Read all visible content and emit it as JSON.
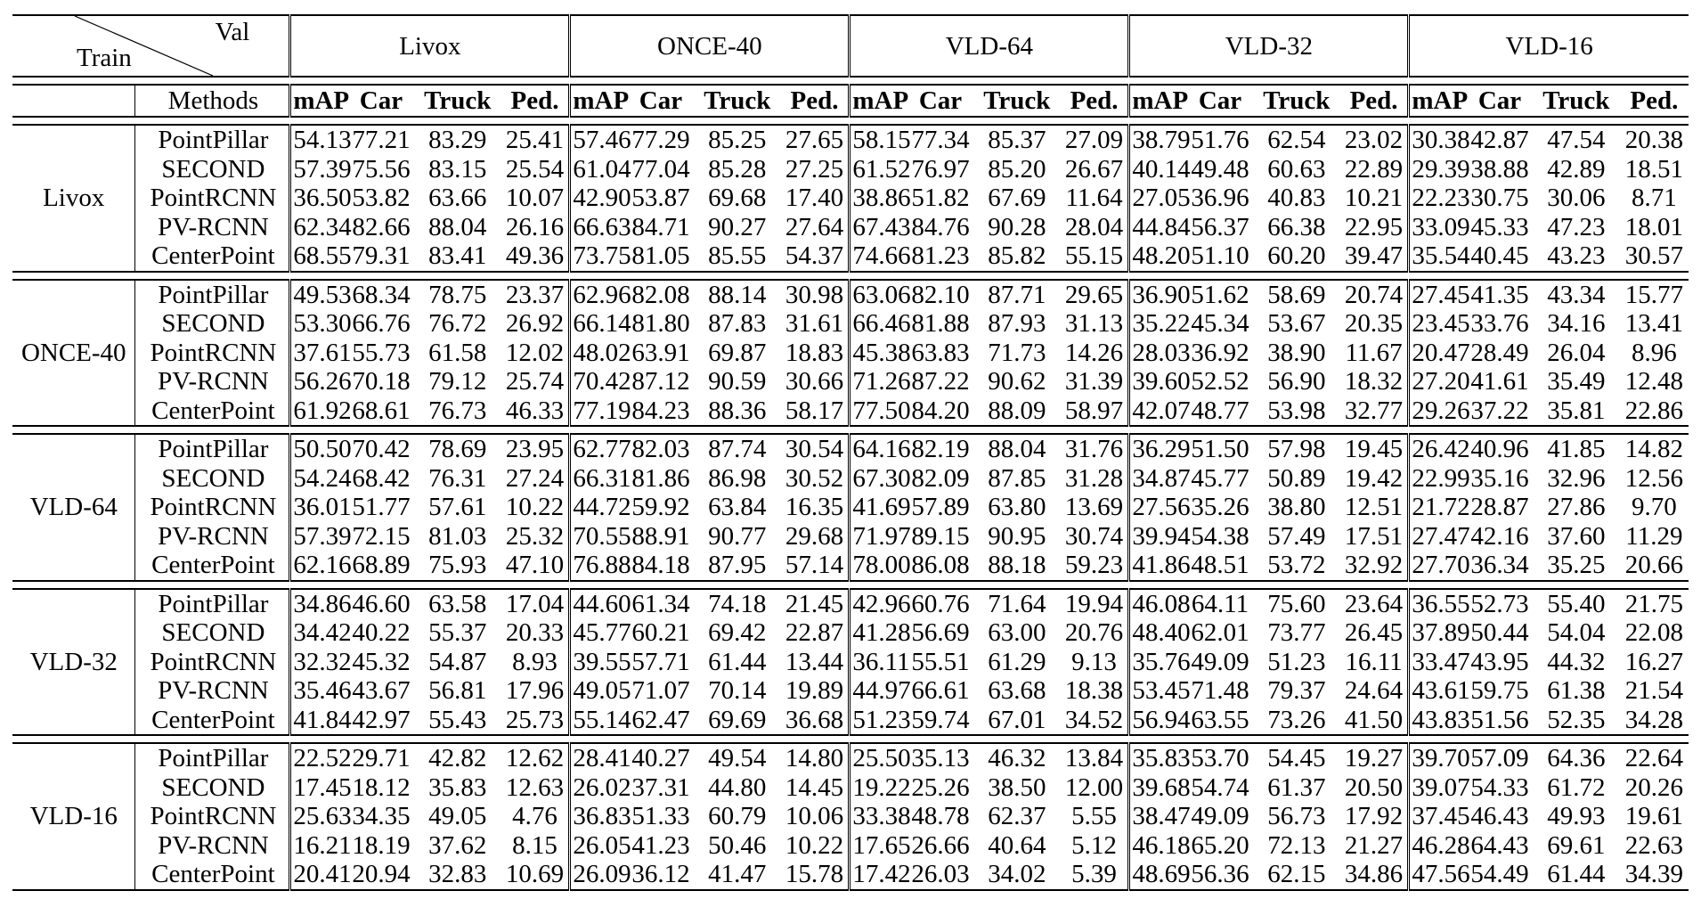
{
  "header": {
    "val_label": "Val",
    "train_label": "Train",
    "methods_label": "Methods",
    "val_groups": [
      "Livox",
      "ONCE-40",
      "VLD-64",
      "VLD-32",
      "VLD-16"
    ],
    "metrics": [
      "mAP",
      "Car",
      "Truck",
      "Ped."
    ]
  },
  "train_groups": [
    {
      "name": "Livox",
      "rows": [
        {
          "method": "PointPillar",
          "values": [
            [
              "54.13",
              "77.21",
              "83.29",
              "25.41"
            ],
            [
              "57.46",
              "77.29",
              "85.25",
              "27.65"
            ],
            [
              "58.15",
              "77.34",
              "85.37",
              "27.09"
            ],
            [
              "38.79",
              "51.76",
              "62.54",
              "23.02"
            ],
            [
              "30.38",
              "42.87",
              "47.54",
              "20.38"
            ]
          ]
        },
        {
          "method": "SECOND",
          "values": [
            [
              "57.39",
              "75.56",
              "83.15",
              "25.54"
            ],
            [
              "61.04",
              "77.04",
              "85.28",
              "27.25"
            ],
            [
              "61.52",
              "76.97",
              "85.20",
              "26.67"
            ],
            [
              "40.14",
              "49.48",
              "60.63",
              "22.89"
            ],
            [
              "29.39",
              "38.88",
              "42.89",
              "18.51"
            ]
          ]
        },
        {
          "method": "PointRCNN",
          "values": [
            [
              "36.50",
              "53.82",
              "63.66",
              "10.07"
            ],
            [
              "42.90",
              "53.87",
              "69.68",
              "17.40"
            ],
            [
              "38.86",
              "51.82",
              "67.69",
              "11.64"
            ],
            [
              "27.05",
              "36.96",
              "40.83",
              "10.21"
            ],
            [
              "22.23",
              "30.75",
              "30.06",
              "8.71"
            ]
          ]
        },
        {
          "method": "PV-RCNN",
          "values": [
            [
              "62.34",
              "82.66",
              "88.04",
              "26.16"
            ],
            [
              "66.63",
              "84.71",
              "90.27",
              "27.64"
            ],
            [
              "67.43",
              "84.76",
              "90.28",
              "28.04"
            ],
            [
              "44.84",
              "56.37",
              "66.38",
              "22.95"
            ],
            [
              "33.09",
              "45.33",
              "47.23",
              "18.01"
            ]
          ]
        },
        {
          "method": "CenterPoint",
          "values": [
            [
              "68.55",
              "79.31",
              "83.41",
              "49.36"
            ],
            [
              "73.75",
              "81.05",
              "85.55",
              "54.37"
            ],
            [
              "74.66",
              "81.23",
              "85.82",
              "55.15"
            ],
            [
              "48.20",
              "51.10",
              "60.20",
              "39.47"
            ],
            [
              "35.54",
              "40.45",
              "43.23",
              "30.57"
            ]
          ]
        }
      ]
    },
    {
      "name": "ONCE-40",
      "rows": [
        {
          "method": "PointPillar",
          "values": [
            [
              "49.53",
              "68.34",
              "78.75",
              "23.37"
            ],
            [
              "62.96",
              "82.08",
              "88.14",
              "30.98"
            ],
            [
              "63.06",
              "82.10",
              "87.71",
              "29.65"
            ],
            [
              "36.90",
              "51.62",
              "58.69",
              "20.74"
            ],
            [
              "27.45",
              "41.35",
              "43.34",
              "15.77"
            ]
          ]
        },
        {
          "method": "SECOND",
          "values": [
            [
              "53.30",
              "66.76",
              "76.72",
              "26.92"
            ],
            [
              "66.14",
              "81.80",
              "87.83",
              "31.61"
            ],
            [
              "66.46",
              "81.88",
              "87.93",
              "31.13"
            ],
            [
              "35.22",
              "45.34",
              "53.67",
              "20.35"
            ],
            [
              "23.45",
              "33.76",
              "34.16",
              "13.41"
            ]
          ]
        },
        {
          "method": "PointRCNN",
          "values": [
            [
              "37.61",
              "55.73",
              "61.58",
              "12.02"
            ],
            [
              "48.02",
              "63.91",
              "69.87",
              "18.83"
            ],
            [
              "45.38",
              "63.83",
              "71.73",
              "14.26"
            ],
            [
              "28.03",
              "36.92",
              "38.90",
              "11.67"
            ],
            [
              "20.47",
              "28.49",
              "26.04",
              "8.96"
            ]
          ]
        },
        {
          "method": "PV-RCNN",
          "values": [
            [
              "56.26",
              "70.18",
              "79.12",
              "25.74"
            ],
            [
              "70.42",
              "87.12",
              "90.59",
              "30.66"
            ],
            [
              "71.26",
              "87.22",
              "90.62",
              "31.39"
            ],
            [
              "39.60",
              "52.52",
              "56.90",
              "18.32"
            ],
            [
              "27.20",
              "41.61",
              "35.49",
              "12.48"
            ]
          ]
        },
        {
          "method": "CenterPoint",
          "values": [
            [
              "61.92",
              "68.61",
              "76.73",
              "46.33"
            ],
            [
              "77.19",
              "84.23",
              "88.36",
              "58.17"
            ],
            [
              "77.50",
              "84.20",
              "88.09",
              "58.97"
            ],
            [
              "42.07",
              "48.77",
              "53.98",
              "32.77"
            ],
            [
              "29.26",
              "37.22",
              "35.81",
              "22.86"
            ]
          ]
        }
      ]
    },
    {
      "name": "VLD-64",
      "rows": [
        {
          "method": "PointPillar",
          "values": [
            [
              "50.50",
              "70.42",
              "78.69",
              "23.95"
            ],
            [
              "62.77",
              "82.03",
              "87.74",
              "30.54"
            ],
            [
              "64.16",
              "82.19",
              "88.04",
              "31.76"
            ],
            [
              "36.29",
              "51.50",
              "57.98",
              "19.45"
            ],
            [
              "26.42",
              "40.96",
              "41.85",
              "14.82"
            ]
          ]
        },
        {
          "method": "SECOND",
          "values": [
            [
              "54.24",
              "68.42",
              "76.31",
              "27.24"
            ],
            [
              "66.31",
              "81.86",
              "86.98",
              "30.52"
            ],
            [
              "67.30",
              "82.09",
              "87.85",
              "31.28"
            ],
            [
              "34.87",
              "45.77",
              "50.89",
              "19.42"
            ],
            [
              "22.99",
              "35.16",
              "32.96",
              "12.56"
            ]
          ]
        },
        {
          "method": "PointRCNN",
          "values": [
            [
              "36.01",
              "51.77",
              "57.61",
              "10.22"
            ],
            [
              "44.72",
              "59.92",
              "63.84",
              "16.35"
            ],
            [
              "41.69",
              "57.89",
              "63.80",
              "13.69"
            ],
            [
              "27.56",
              "35.26",
              "38.80",
              "12.51"
            ],
            [
              "21.72",
              "28.87",
              "27.86",
              "9.70"
            ]
          ]
        },
        {
          "method": "PV-RCNN",
          "values": [
            [
              "57.39",
              "72.15",
              "81.03",
              "25.32"
            ],
            [
              "70.55",
              "88.91",
              "90.77",
              "29.68"
            ],
            [
              "71.97",
              "89.15",
              "90.95",
              "30.74"
            ],
            [
              "39.94",
              "54.38",
              "57.49",
              "17.51"
            ],
            [
              "27.47",
              "42.16",
              "37.60",
              "11.29"
            ]
          ]
        },
        {
          "method": "CenterPoint",
          "values": [
            [
              "62.16",
              "68.89",
              "75.93",
              "47.10"
            ],
            [
              "76.88",
              "84.18",
              "87.95",
              "57.14"
            ],
            [
              "78.00",
              "86.08",
              "88.18",
              "59.23"
            ],
            [
              "41.86",
              "48.51",
              "53.72",
              "32.92"
            ],
            [
              "27.70",
              "36.34",
              "35.25",
              "20.66"
            ]
          ]
        }
      ]
    },
    {
      "name": "VLD-32",
      "rows": [
        {
          "method": "PointPillar",
          "values": [
            [
              "34.86",
              "46.60",
              "63.58",
              "17.04"
            ],
            [
              "44.60",
              "61.34",
              "74.18",
              "21.45"
            ],
            [
              "42.96",
              "60.76",
              "71.64",
              "19.94"
            ],
            [
              "46.08",
              "64.11",
              "75.60",
              "23.64"
            ],
            [
              "36.55",
              "52.73",
              "55.40",
              "21.75"
            ]
          ]
        },
        {
          "method": "SECOND",
          "values": [
            [
              "34.42",
              "40.22",
              "55.37",
              "20.33"
            ],
            [
              "45.77",
              "60.21",
              "69.42",
              "22.87"
            ],
            [
              "41.28",
              "56.69",
              "63.00",
              "20.76"
            ],
            [
              "48.40",
              "62.01",
              "73.77",
              "26.45"
            ],
            [
              "37.89",
              "50.44",
              "54.04",
              "22.08"
            ]
          ]
        },
        {
          "method": "PointRCNN",
          "values": [
            [
              "32.32",
              "45.32",
              "54.87",
              "8.93"
            ],
            [
              "39.55",
              "57.71",
              "61.44",
              "13.44"
            ],
            [
              "36.11",
              "55.51",
              "61.29",
              "9.13"
            ],
            [
              "35.76",
              "49.09",
              "51.23",
              "16.11"
            ],
            [
              "33.47",
              "43.95",
              "44.32",
              "16.27"
            ]
          ]
        },
        {
          "method": "PV-RCNN",
          "values": [
            [
              "35.46",
              "43.67",
              "56.81",
              "17.96"
            ],
            [
              "49.05",
              "71.07",
              "70.14",
              "19.89"
            ],
            [
              "44.97",
              "66.61",
              "63.68",
              "18.38"
            ],
            [
              "53.45",
              "71.48",
              "79.37",
              "24.64"
            ],
            [
              "43.61",
              "59.75",
              "61.38",
              "21.54"
            ]
          ]
        },
        {
          "method": "CenterPoint",
          "values": [
            [
              "41.84",
              "42.97",
              "55.43",
              "25.73"
            ],
            [
              "55.14",
              "62.47",
              "69.69",
              "36.68"
            ],
            [
              "51.23",
              "59.74",
              "67.01",
              "34.52"
            ],
            [
              "56.94",
              "63.55",
              "73.26",
              "41.50"
            ],
            [
              "43.83",
              "51.56",
              "52.35",
              "34.28"
            ]
          ]
        }
      ]
    },
    {
      "name": "VLD-16",
      "rows": [
        {
          "method": "PointPillar",
          "values": [
            [
              "22.52",
              "29.71",
              "42.82",
              "12.62"
            ],
            [
              "28.41",
              "40.27",
              "49.54",
              "14.80"
            ],
            [
              "25.50",
              "35.13",
              "46.32",
              "13.84"
            ],
            [
              "35.83",
              "53.70",
              "54.45",
              "19.27"
            ],
            [
              "39.70",
              "57.09",
              "64.36",
              "22.64"
            ]
          ]
        },
        {
          "method": "SECOND",
          "values": [
            [
              "17.45",
              "18.12",
              "35.83",
              "12.63"
            ],
            [
              "26.02",
              "37.31",
              "44.80",
              "14.45"
            ],
            [
              "19.22",
              "25.26",
              "38.50",
              "12.00"
            ],
            [
              "39.68",
              "54.74",
              "61.37",
              "20.50"
            ],
            [
              "39.07",
              "54.33",
              "61.72",
              "20.26"
            ]
          ]
        },
        {
          "method": "PointRCNN",
          "values": [
            [
              "25.63",
              "34.35",
              "49.05",
              "4.76"
            ],
            [
              "36.83",
              "51.33",
              "60.79",
              "10.06"
            ],
            [
              "33.38",
              "48.78",
              "62.37",
              "5.55"
            ],
            [
              "38.47",
              "49.09",
              "56.73",
              "17.92"
            ],
            [
              "37.45",
              "46.43",
              "49.93",
              "19.61"
            ]
          ]
        },
        {
          "method": "PV-RCNN",
          "values": [
            [
              "16.21",
              "18.19",
              "37.62",
              "8.15"
            ],
            [
              "26.05",
              "41.23",
              "50.46",
              "10.22"
            ],
            [
              "17.65",
              "26.66",
              "40.64",
              "5.12"
            ],
            [
              "46.18",
              "65.20",
              "72.13",
              "21.27"
            ],
            [
              "46.28",
              "64.43",
              "69.61",
              "22.63"
            ]
          ]
        },
        {
          "method": "CenterPoint",
          "values": [
            [
              "20.41",
              "20.94",
              "32.83",
              "10.69"
            ],
            [
              "26.09",
              "36.12",
              "41.47",
              "15.78"
            ],
            [
              "17.42",
              "26.03",
              "34.02",
              "5.39"
            ],
            [
              "48.69",
              "56.36",
              "62.15",
              "34.86"
            ],
            [
              "47.56",
              "54.49",
              "61.44",
              "34.39"
            ]
          ]
        }
      ]
    }
  ]
}
